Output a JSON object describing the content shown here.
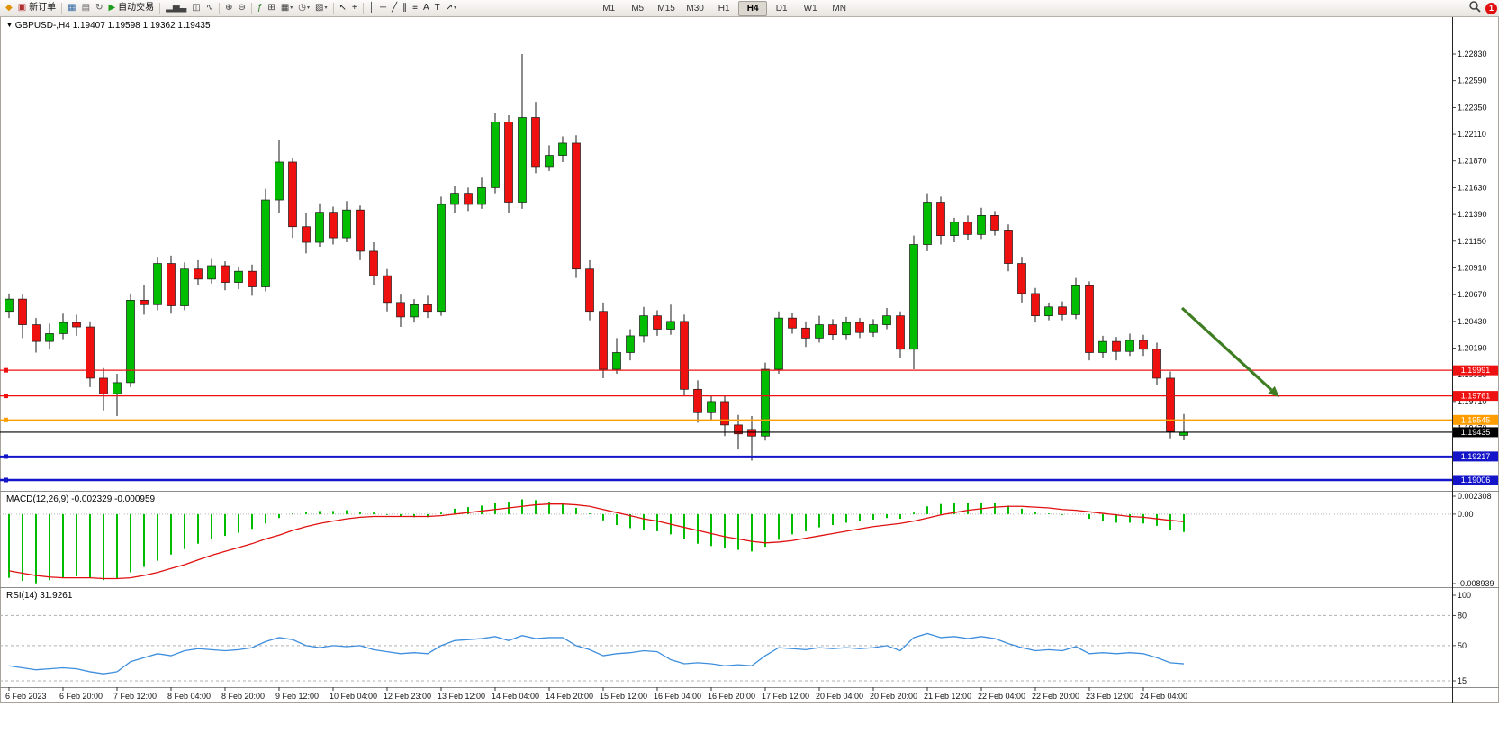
{
  "toolbar": {
    "groups": [
      [
        {
          "name": "app-icon",
          "glyph": "◆",
          "color": "#e09100"
        },
        {
          "name": "new-order-button",
          "glyph": "▣",
          "color": "#b03030",
          "label": "新订单"
        }
      ],
      [
        {
          "name": "charts-icon",
          "glyph": "▦",
          "color": "#3b6ea5"
        },
        {
          "name": "profiles-icon",
          "glyph": "▤",
          "color": "#6b6b6b"
        },
        {
          "name": "refresh-icon",
          "glyph": "↻",
          "color": "#555555"
        },
        {
          "name": "autotrade-button",
          "glyph": "▶",
          "color": "#1c9c1c",
          "label": "自动交易"
        }
      ],
      [
        {
          "name": "bar-chart-icon",
          "glyph": "▂▅▃",
          "color": "#444444"
        },
        {
          "name": "candlestick-chart-icon",
          "glyph": "◫",
          "color": "#444444"
        },
        {
          "name": "line-chart-icon",
          "glyph": "∿",
          "color": "#444444"
        }
      ],
      [
        {
          "name": "zoom-in-icon",
          "glyph": "⊕",
          "color": "#444444"
        },
        {
          "name": "zoom-out-icon",
          "glyph": "⊖",
          "color": "#444444"
        }
      ],
      [
        {
          "name": "indicators-icon",
          "glyph": "ƒ",
          "color": "#2a7a2a"
        },
        {
          "name": "tile-windows-icon",
          "glyph": "⊞",
          "color": "#444444"
        },
        {
          "name": "new-chart-icon",
          "glyph": "▦",
          "color": "#444444",
          "caret": true
        },
        {
          "name": "period-icon",
          "glyph": "◷",
          "color": "#444444",
          "caret": true
        },
        {
          "name": "template-icon",
          "glyph": "▨",
          "color": "#444444",
          "caret": true
        }
      ],
      [
        {
          "name": "cursor-icon",
          "glyph": "↖",
          "color": "#222222"
        },
        {
          "name": "crosshair-icon",
          "glyph": "+",
          "color": "#222222"
        }
      ],
      [
        {
          "name": "vertical-line-icon",
          "glyph": "│",
          "color": "#222222"
        },
        {
          "name": "horizontal-line-icon",
          "glyph": "─",
          "color": "#222222"
        },
        {
          "name": "trendline-icon",
          "glyph": "╱",
          "color": "#222222"
        },
        {
          "name": "channel-icon",
          "glyph": "∥",
          "color": "#222222"
        },
        {
          "name": "fibonacci-icon",
          "glyph": "≡",
          "color": "#222222"
        },
        {
          "name": "text-icon",
          "glyph": "A",
          "color": "#222222"
        },
        {
          "name": "label-icon",
          "glyph": "T",
          "color": "#222222"
        },
        {
          "name": "arrows-icon",
          "glyph": "↗",
          "color": "#222222",
          "caret": true
        }
      ]
    ],
    "timeframes": [
      "M1",
      "M5",
      "M15",
      "M30",
      "H1",
      "H4",
      "D1",
      "W1",
      "MN"
    ],
    "active_timeframe": "H4",
    "notification_count": "1"
  },
  "chart": {
    "symbol_period": "GBPUSD-,H4",
    "ohlc_display": "1.19407 1.19598 1.19362 1.19435",
    "collapse_glyph": "▼"
  },
  "chart_data": {
    "type": "candlestick",
    "symbol": "GBPUSD-",
    "timeframe": "H4",
    "current_bar": {
      "open": 1.19407,
      "high": 1.19598,
      "low": 1.19362,
      "close": 1.19435
    },
    "price_axis_labels": [
      "1.22830",
      "1.22590",
      "1.22350",
      "1.22110",
      "1.21870",
      "1.21630",
      "1.21390",
      "1.21150",
      "1.20910",
      "1.20670",
      "1.20430",
      "1.20190",
      "1.19950",
      "1.19710",
      "1.19470",
      "1.19230",
      "1.18990"
    ],
    "date_labels": [
      "6 Feb 2023",
      "6 Feb 20:00",
      "7 Feb 12:00",
      "8 Feb 04:00",
      "8 Feb 20:00",
      "9 Feb 12:00",
      "10 Feb 04:00",
      "12 Feb 23:00",
      "13 Feb 12:00",
      "14 Feb 04:00",
      "14 Feb 20:00",
      "15 Feb 12:00",
      "16 Feb 04:00",
      "16 Feb 20:00",
      "17 Feb 12:00",
      "20 Feb 04:00",
      "20 Feb 20:00",
      "21 Feb 12:00",
      "22 Feb 04:00",
      "22 Feb 20:00",
      "23 Feb 12:00",
      "24 Feb 04:00"
    ],
    "candles": [
      [
        1.2052,
        1.2068,
        1.2046,
        1.2063
      ],
      [
        1.2063,
        1.2067,
        1.2028,
        1.204
      ],
      [
        1.204,
        1.2046,
        1.2015,
        1.2025
      ],
      [
        1.2025,
        1.2041,
        1.2018,
        1.2032
      ],
      [
        1.2032,
        1.205,
        1.2027,
        1.2042
      ],
      [
        1.2042,
        1.2049,
        1.203,
        1.2038
      ],
      [
        1.2038,
        1.2043,
        1.1984,
        1.1992
      ],
      [
        1.1992,
        1.2001,
        1.1963,
        1.1978
      ],
      [
        1.1978,
        1.1996,
        1.1958,
        1.1988
      ],
      [
        1.1988,
        1.2068,
        1.1984,
        1.2062
      ],
      [
        1.2062,
        1.2076,
        1.2049,
        1.2058
      ],
      [
        1.2058,
        1.2101,
        1.2053,
        1.2095
      ],
      [
        1.2095,
        1.2102,
        1.205,
        1.2057
      ],
      [
        1.2057,
        1.2096,
        1.2053,
        1.209
      ],
      [
        1.209,
        1.2098,
        1.2076,
        1.2081
      ],
      [
        1.2081,
        1.2099,
        1.2077,
        1.2093
      ],
      [
        1.2093,
        1.2097,
        1.2071,
        1.2078
      ],
      [
        1.2078,
        1.2092,
        1.2072,
        1.2088
      ],
      [
        1.2088,
        1.2094,
        1.2066,
        1.2074
      ],
      [
        1.2074,
        1.2162,
        1.207,
        1.2152
      ],
      [
        1.2152,
        1.2206,
        1.214,
        1.2186
      ],
      [
        1.2186,
        1.219,
        1.2118,
        1.2128
      ],
      [
        1.2128,
        1.214,
        1.2104,
        1.2114
      ],
      [
        1.2114,
        1.2149,
        1.211,
        1.2141
      ],
      [
        1.2141,
        1.2146,
        1.2112,
        1.2118
      ],
      [
        1.2118,
        1.2151,
        1.2114,
        1.2143
      ],
      [
        1.2143,
        1.2147,
        1.2098,
        1.2106
      ],
      [
        1.2106,
        1.2114,
        1.2076,
        1.2084
      ],
      [
        1.2084,
        1.209,
        1.2052,
        1.206
      ],
      [
        1.206,
        1.2067,
        1.2038,
        1.2047
      ],
      [
        1.2047,
        1.2063,
        1.2042,
        1.2058
      ],
      [
        1.2058,
        1.2066,
        1.2046,
        1.2052
      ],
      [
        1.2052,
        1.2155,
        1.2048,
        1.2148
      ],
      [
        1.2148,
        1.2165,
        1.214,
        1.2158
      ],
      [
        1.2158,
        1.2163,
        1.2142,
        1.2148
      ],
      [
        1.2148,
        1.2172,
        1.2144,
        1.2163
      ],
      [
        1.2163,
        1.223,
        1.2158,
        1.2222
      ],
      [
        1.2222,
        1.2228,
        1.214,
        1.215
      ],
      [
        1.215,
        1.2283,
        1.2144,
        1.2226
      ],
      [
        1.2226,
        1.224,
        1.2176,
        1.2182
      ],
      [
        1.2182,
        1.2201,
        1.2178,
        1.2192
      ],
      [
        1.2192,
        1.2209,
        1.2186,
        1.2203
      ],
      [
        1.2203,
        1.221,
        1.2082,
        1.209
      ],
      [
        1.209,
        1.2098,
        1.2044,
        1.2052
      ],
      [
        1.2052,
        1.206,
        1.1992,
        1.2
      ],
      [
        1.2,
        1.2028,
        1.1996,
        1.2015
      ],
      [
        1.2015,
        1.2036,
        1.2008,
        1.203
      ],
      [
        1.203,
        1.2056,
        1.2024,
        1.2048
      ],
      [
        1.2048,
        1.2053,
        1.203,
        1.2036
      ],
      [
        1.2036,
        1.2058,
        1.2031,
        1.2043
      ],
      [
        1.2043,
        1.2049,
        1.1976,
        1.1982
      ],
      [
        1.1982,
        1.199,
        1.1952,
        1.1961
      ],
      [
        1.1961,
        1.1976,
        1.1954,
        1.1971
      ],
      [
        1.1971,
        1.1976,
        1.194,
        1.195
      ],
      [
        1.195,
        1.1959,
        1.1928,
        1.1942
      ],
      [
        1.1946,
        1.1958,
        1.1918,
        1.194
      ],
      [
        1.194,
        1.2006,
        1.1936,
        1.2
      ],
      [
        1.2,
        1.2052,
        1.1996,
        1.2046
      ],
      [
        1.2046,
        1.2051,
        1.2032,
        1.2037
      ],
      [
        1.2037,
        1.2043,
        1.202,
        1.2028
      ],
      [
        1.2028,
        1.2048,
        1.2024,
        1.204
      ],
      [
        1.204,
        1.2045,
        1.2026,
        1.2031
      ],
      [
        1.2031,
        1.2047,
        1.2027,
        1.2042
      ],
      [
        1.2042,
        1.2046,
        1.2028,
        1.2033
      ],
      [
        1.2033,
        1.2045,
        1.2029,
        1.204
      ],
      [
        1.204,
        1.2055,
        1.2036,
        1.2048
      ],
      [
        1.2048,
        1.2052,
        1.201,
        1.2018
      ],
      [
        1.2018,
        1.212,
        1.2,
        1.2112
      ],
      [
        1.2112,
        1.2158,
        1.2106,
        1.215
      ],
      [
        1.215,
        1.2155,
        1.2112,
        1.212
      ],
      [
        1.212,
        1.2136,
        1.2114,
        1.2132
      ],
      [
        1.2132,
        1.2138,
        1.2116,
        1.2121
      ],
      [
        1.2121,
        1.2145,
        1.2117,
        1.2138
      ],
      [
        1.2138,
        1.2142,
        1.212,
        1.2125
      ],
      [
        1.2125,
        1.213,
        1.2088,
        1.2095
      ],
      [
        1.2095,
        1.2101,
        1.206,
        1.2068
      ],
      [
        1.2068,
        1.2073,
        1.2042,
        1.2048
      ],
      [
        1.2048,
        1.206,
        1.2044,
        1.2056
      ],
      [
        1.2056,
        1.2061,
        1.2044,
        1.2049
      ],
      [
        1.2049,
        1.2082,
        1.2045,
        1.2075
      ],
      [
        1.2075,
        1.2079,
        1.2008,
        1.2015
      ],
      [
        1.2015,
        1.203,
        1.201,
        1.2025
      ],
      [
        1.2025,
        1.2029,
        1.2008,
        1.2016
      ],
      [
        1.2016,
        1.2032,
        1.2012,
        1.2026
      ],
      [
        1.2026,
        1.2031,
        1.2012,
        1.2018
      ],
      [
        1.2018,
        1.2024,
        1.1986,
        1.1992
      ],
      [
        1.1992,
        1.1998,
        1.1938,
        1.1944
      ],
      [
        1.19407,
        1.19598,
        1.19362,
        1.19435
      ]
    ],
    "hlines": [
      {
        "price": 1.19991,
        "label": "1.19991",
        "color": "#ee1111",
        "width": 1.2
      },
      {
        "price": 1.19761,
        "label": "1.19761",
        "color": "#ee1111",
        "width": 1.2
      },
      {
        "price": 1.19545,
        "label": "1.19545",
        "color": "#ff9c00",
        "width": 1.5
      },
      {
        "price": 1.19217,
        "label": "1.19217",
        "color": "#1414c8",
        "width": 2
      },
      {
        "price": 1.19006,
        "label": "1.19006",
        "color": "#1414c8",
        "width": 2.5
      }
    ],
    "current_price": {
      "price": 1.19435,
      "label": "1.19435",
      "color": "#000000"
    },
    "macd": {
      "title": "MACD(12,26,9)",
      "value_label": "-0.002329 -0.000959",
      "axis_labels": [
        {
          "value": 0.002308,
          "label": "0.002308"
        },
        {
          "value": 0,
          "label": "0.00"
        },
        {
          "value": -0.008939,
          "label": "-0.008939"
        }
      ],
      "histogram": [
        -0.0082,
        -0.0086,
        -0.0089,
        -0.0085,
        -0.0082,
        -0.008,
        -0.0082,
        -0.0085,
        -0.0083,
        -0.0075,
        -0.0068,
        -0.006,
        -0.0052,
        -0.0045,
        -0.0038,
        -0.0032,
        -0.0028,
        -0.0024,
        -0.0019,
        -0.0012,
        -0.0005,
        0.0001,
        0.0003,
        0.0004,
        0.0004,
        0.0005,
        0.0003,
        0.0002,
        -0.0001,
        -0.0003,
        -0.0004,
        -0.0004,
        0.0002,
        0.0007,
        0.0009,
        0.0011,
        0.0014,
        0.0016,
        0.0019,
        0.0018,
        0.0016,
        0.0015,
        0.0008,
        0.0001,
        -0.0008,
        -0.0014,
        -0.0018,
        -0.002,
        -0.0022,
        -0.0026,
        -0.0032,
        -0.0038,
        -0.0041,
        -0.0044,
        -0.0046,
        -0.0048,
        -0.0042,
        -0.0033,
        -0.0026,
        -0.0022,
        -0.0017,
        -0.0014,
        -0.0011,
        -0.0009,
        -0.0007,
        -0.0005,
        -0.0006,
        0.0002,
        0.001,
        0.0013,
        0.0014,
        0.0014,
        0.0015,
        0.0014,
        0.0011,
        0.0007,
        0.0003,
        0.0001,
        -0.0001,
        0.0,
        -0.0006,
        -0.0009,
        -0.0011,
        -0.0011,
        -0.0012,
        -0.0015,
        -0.0021,
        -0.0023
      ],
      "signal": [
        -0.0073,
        -0.0076,
        -0.0079,
        -0.0081,
        -0.0082,
        -0.0082,
        -0.0082,
        -0.0083,
        -0.0083,
        -0.0082,
        -0.0079,
        -0.0075,
        -0.007,
        -0.0065,
        -0.0059,
        -0.0053,
        -0.0048,
        -0.0043,
        -0.0038,
        -0.0032,
        -0.0027,
        -0.0021,
        -0.0016,
        -0.0012,
        -0.0009,
        -0.0006,
        -0.0004,
        -0.0003,
        -0.0003,
        -0.0003,
        -0.0003,
        -0.0003,
        -0.0002,
        0.0,
        0.0002,
        0.0004,
        0.0006,
        0.0008,
        0.001,
        0.0012,
        0.0013,
        0.0013,
        0.0012,
        0.001,
        0.0006,
        0.0002,
        -0.0002,
        -0.0006,
        -0.0009,
        -0.0013,
        -0.0017,
        -0.0021,
        -0.0025,
        -0.0029,
        -0.0032,
        -0.0035,
        -0.0037,
        -0.0036,
        -0.0034,
        -0.0031,
        -0.0028,
        -0.0025,
        -0.0022,
        -0.0019,
        -0.0016,
        -0.0014,
        -0.0012,
        -0.0009,
        -0.0005,
        -0.0001,
        0.0002,
        0.0005,
        0.0007,
        0.0009,
        0.001,
        0.001,
        0.0009,
        0.0008,
        0.0006,
        0.0005,
        0.0003,
        0.0001,
        -0.0001,
        -0.0003,
        -0.0004,
        -0.0006,
        -0.0008,
        -0.00096
      ]
    },
    "rsi": {
      "title": "RSI(14)",
      "value_label": "31.9261",
      "levels": [
        {
          "value": 100,
          "label": "100"
        },
        {
          "value": 80,
          "label": "80"
        },
        {
          "value": 50,
          "label": "50"
        },
        {
          "value": 15,
          "label": "15"
        }
      ],
      "values": [
        30,
        28,
        26,
        27,
        28,
        27,
        24,
        22,
        24,
        34,
        38,
        42,
        40,
        45,
        47,
        46,
        45,
        46,
        48,
        54,
        58,
        56,
        50,
        48,
        50,
        49,
        50,
        46,
        44,
        42,
        43,
        42,
        50,
        55,
        56,
        57,
        59,
        55,
        60,
        57,
        58,
        58,
        50,
        46,
        40,
        42,
        43,
        45,
        44,
        36,
        32,
        33,
        32,
        30,
        31,
        30,
        40,
        48,
        47,
        46,
        48,
        47,
        48,
        47,
        48,
        50,
        45,
        58,
        62,
        58,
        59,
        57,
        59,
        57,
        52,
        48,
        45,
        46,
        45,
        49,
        42,
        43,
        42,
        43,
        42,
        38,
        33,
        31.93
      ],
      "line_color": "#3e8ede"
    },
    "annotations": [
      {
        "type": "arrow",
        "name": "sell-signal-arrow",
        "from": [
          1313,
          342
        ],
        "to": [
          1421,
          441
        ],
        "color": "#3f7d23",
        "width": 3.2
      }
    ],
    "colors": {
      "up": "#00bd00",
      "down": "#ef1010",
      "wick": "#1a1a1a",
      "macd_hist": "#00bd00",
      "macd_signal": "#e01010"
    }
  }
}
